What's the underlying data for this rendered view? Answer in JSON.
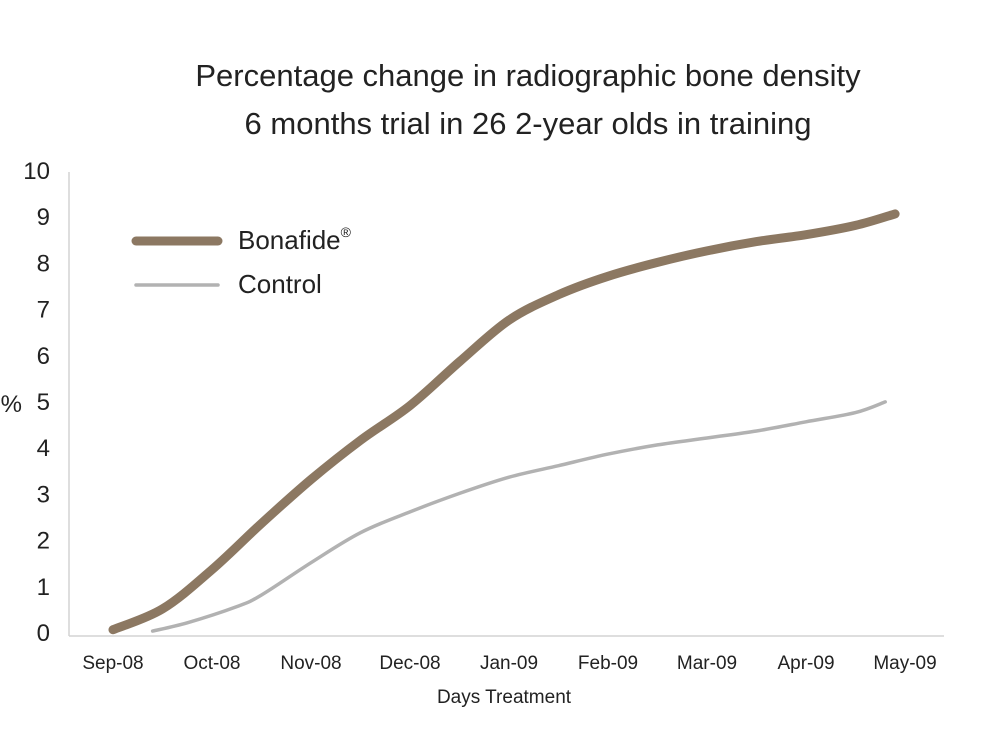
{
  "chart_data": {
    "type": "line",
    "title": "Percentage change in radiographic bone density",
    "subtitle": "6 months trial in 26 2-year olds in training",
    "xlabel": "Days Treatment",
    "ylabel": "%",
    "categories": [
      "Sep-08",
      "Oct-08",
      "Nov-08",
      "Dec-08",
      "Jan-09",
      "Feb-09",
      "Mar-09",
      "Apr-09",
      "May-09"
    ],
    "ylim": [
      0,
      10
    ],
    "yticks": [
      "0",
      "1",
      "2",
      "3",
      "4",
      "5",
      "6",
      "7",
      "8",
      "9",
      "10"
    ],
    "grid": false,
    "legend_position": "top-left",
    "series": [
      {
        "name": "Bonafide",
        "name_mark": "®",
        "color": "#8c7862",
        "points": [
          [
            0,
            0.05
          ],
          [
            0.5,
            0.5
          ],
          [
            1,
            1.35
          ],
          [
            1.5,
            2.35
          ],
          [
            2,
            3.3
          ],
          [
            2.5,
            4.15
          ],
          [
            3,
            4.9
          ],
          [
            3.5,
            5.85
          ],
          [
            4,
            6.75
          ],
          [
            4.5,
            7.3
          ],
          [
            5,
            7.7
          ],
          [
            5.5,
            8.0
          ],
          [
            6,
            8.25
          ],
          [
            6.5,
            8.45
          ],
          [
            7,
            8.6
          ],
          [
            7.5,
            8.8
          ],
          [
            7.9,
            9.05
          ]
        ]
      },
      {
        "name": "Control",
        "color": "#b2b2b2",
        "points": [
          [
            0.4,
            0.02
          ],
          [
            0.75,
            0.2
          ],
          [
            1.25,
            0.55
          ],
          [
            1.5,
            0.8
          ],
          [
            2,
            1.5
          ],
          [
            2.5,
            2.15
          ],
          [
            3,
            2.6
          ],
          [
            3.5,
            3.0
          ],
          [
            4,
            3.35
          ],
          [
            4.5,
            3.6
          ],
          [
            5,
            3.85
          ],
          [
            5.5,
            4.05
          ],
          [
            6,
            4.2
          ],
          [
            6.5,
            4.35
          ],
          [
            7,
            4.55
          ],
          [
            7.5,
            4.75
          ],
          [
            7.8,
            4.98
          ]
        ]
      }
    ]
  }
}
